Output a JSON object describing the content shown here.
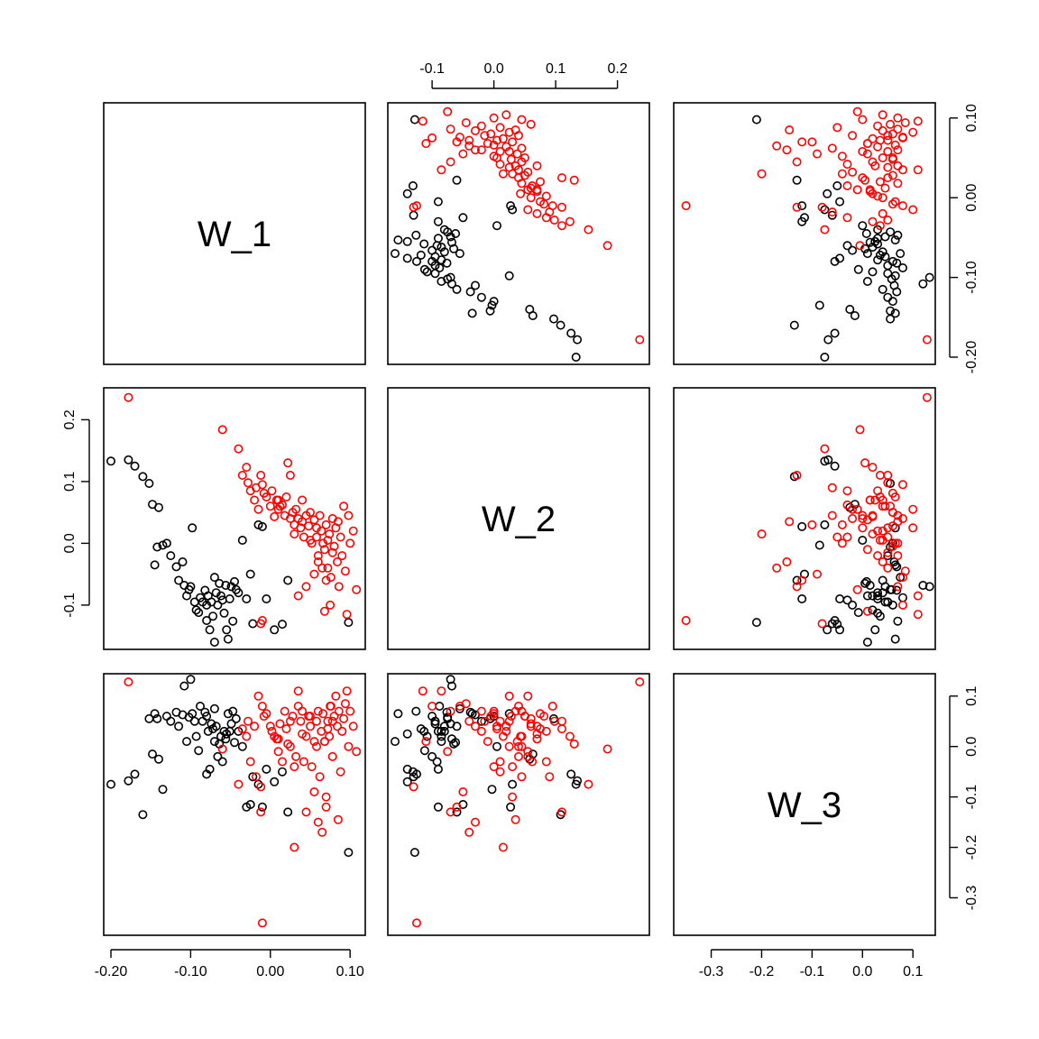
{
  "chart_data": {
    "type": "scatter",
    "layout": "pairs-matrix",
    "variables": [
      "W_1",
      "W_2",
      "W_3"
    ],
    "colors": {
      "group_black": "#000000",
      "group_red": "#ff0000"
    },
    "axis_limits": {
      "W_1": [
        -0.2,
        0.11
      ],
      "W_2": [
        -0.16,
        0.24
      ],
      "W_3": [
        -0.36,
        0.13
      ]
    },
    "ticks": {
      "W_1": {
        "values": [
          -0.2,
          -0.1,
          0.0,
          0.1
        ],
        "labels": [
          "-0.20",
          "-0.10",
          "0.00",
          "0.10"
        ]
      },
      "W_2_top": {
        "values": [
          -0.1,
          0.0,
          0.1,
          0.2
        ],
        "labels": [
          "-0.1",
          "0.0",
          "0.1",
          "0.2"
        ]
      },
      "W_2_left": {
        "values": [
          -0.1,
          0.0,
          0.1,
          0.2
        ],
        "labels": [
          "-0.1",
          "0.0",
          "0.1",
          "0.2"
        ]
      },
      "W_3_bottom": {
        "values": [
          -0.3,
          -0.2,
          -0.1,
          0.0,
          0.1
        ],
        "labels": [
          "-0.3",
          "-0.2",
          "-0.1",
          "0.0",
          "0.1"
        ]
      },
      "W_1_right": {
        "values": [
          -0.2,
          -0.1,
          0.0,
          0.1
        ],
        "labels": [
          "-0.20",
          "-0.10",
          "0.00",
          "0.10"
        ]
      },
      "W_3_right": {
        "values": [
          -0.3,
          -0.2,
          -0.1,
          0.0,
          0.1
        ],
        "labels": [
          "-0.3",
          "-0.2",
          "-0.1",
          "0.0",
          "0.1"
        ]
      }
    },
    "series": [
      {
        "group": "black",
        "points": [
          [
            -0.2,
            0.133,
            -0.075
          ],
          [
            -0.178,
            0.135,
            -0.068
          ],
          [
            -0.17,
            0.125,
            -0.055
          ],
          [
            -0.16,
            0.108,
            -0.135
          ],
          [
            -0.152,
            0.097,
            0.055
          ],
          [
            -0.148,
            0.063,
            -0.015
          ],
          [
            -0.14,
            0.058,
            -0.025
          ],
          [
            -0.142,
            -0.006,
            0.055
          ],
          [
            -0.145,
            -0.035,
            0.065
          ],
          [
            -0.135,
            -0.003,
            -0.085
          ],
          [
            -0.13,
            0.0,
            0.06
          ],
          [
            -0.125,
            -0.02,
            0.05
          ],
          [
            -0.118,
            -0.038,
            0.068
          ],
          [
            -0.115,
            -0.06,
            0.04
          ],
          [
            -0.11,
            -0.03,
            0.063
          ],
          [
            -0.108,
            -0.068,
            0.12
          ],
          [
            -0.105,
            -0.085,
            0.01
          ],
          [
            -0.102,
            -0.075,
            0.058
          ],
          [
            -0.1,
            -0.07,
            0.133
          ],
          [
            -0.098,
            0.025,
            0.065
          ],
          [
            -0.095,
            -0.095,
            0.05
          ],
          [
            -0.093,
            -0.108,
            0.02
          ],
          [
            -0.09,
            -0.112,
            -0.008
          ],
          [
            -0.088,
            -0.088,
            0.08
          ],
          [
            -0.085,
            -0.095,
            0.05
          ],
          [
            -0.082,
            -0.076,
            0.068
          ],
          [
            -0.08,
            -0.1,
            0.06
          ],
          [
            -0.078,
            -0.085,
            0.03
          ],
          [
            -0.076,
            -0.14,
            -0.045
          ],
          [
            -0.074,
            -0.095,
            0.045
          ],
          [
            -0.072,
            -0.118,
            0.035
          ],
          [
            -0.07,
            -0.055,
            0.075
          ],
          [
            -0.068,
            -0.08,
            0.04
          ],
          [
            -0.066,
            -0.1,
            -0.02
          ],
          [
            -0.064,
            -0.065,
            0.005
          ],
          [
            -0.062,
            -0.085,
            0.02
          ],
          [
            -0.06,
            -0.092,
            -0.03
          ],
          [
            -0.058,
            -0.113,
            0.03
          ],
          [
            -0.056,
            -0.068,
            0.015
          ],
          [
            -0.055,
            -0.14,
            0.025
          ],
          [
            -0.053,
            -0.155,
            0.065
          ],
          [
            -0.051,
            -0.09,
            0.03
          ],
          [
            -0.049,
            -0.07,
            0.045
          ],
          [
            -0.047,
            -0.126,
            0.07
          ],
          [
            -0.045,
            -0.062,
            0.008
          ],
          [
            -0.043,
            -0.075,
            0.055
          ],
          [
            -0.04,
            -0.08,
            0.03
          ],
          [
            -0.035,
            0.005,
            0.0
          ],
          [
            -0.03,
            -0.09,
            -0.12
          ],
          [
            -0.025,
            -0.05,
            -0.115
          ],
          [
            -0.022,
            -0.13,
            -0.06
          ],
          [
            -0.015,
            0.03,
            -0.075
          ],
          [
            -0.01,
            0.027,
            -0.12
          ],
          [
            -0.005,
            -0.09,
            -0.045
          ],
          [
            0.005,
            -0.14,
            -0.07
          ],
          [
            0.015,
            -0.131,
            -0.05
          ],
          [
            0.022,
            -0.06,
            -0.13
          ],
          [
            0.098,
            -0.128,
            -0.21
          ],
          [
            -0.08,
            -0.125,
            -0.055
          ],
          [
            -0.07,
            -0.16,
            0.01
          ]
        ]
      },
      {
        "group": "red",
        "points": [
          [
            -0.178,
            0.236,
            0.128
          ],
          [
            -0.06,
            0.184,
            -0.005
          ],
          [
            -0.04,
            0.153,
            -0.075
          ],
          [
            -0.035,
            0.11,
            0.035
          ],
          [
            -0.03,
            0.123,
            0.02
          ],
          [
            -0.028,
            0.098,
            0.05
          ],
          [
            -0.025,
            0.085,
            -0.03
          ],
          [
            -0.02,
            0.07,
            0.04
          ],
          [
            -0.018,
            0.09,
            -0.06
          ],
          [
            -0.015,
            0.055,
            0.1
          ],
          [
            -0.012,
            0.11,
            -0.13
          ],
          [
            -0.01,
            0.095,
            0.08
          ],
          [
            -0.008,
            0.081,
            0.06
          ],
          [
            -0.005,
            0.075,
            0.065
          ],
          [
            0.0,
            0.06,
            0.04
          ],
          [
            0.002,
            0.085,
            0.03
          ],
          [
            0.005,
            0.043,
            0.02
          ],
          [
            0.008,
            0.07,
            0.015
          ],
          [
            0.01,
            0.055,
            -0.01
          ],
          [
            0.012,
            0.06,
            0.045
          ],
          [
            0.015,
            0.062,
            -0.03
          ],
          [
            0.018,
            0.045,
            0.07
          ],
          [
            0.02,
            0.075,
            0.035
          ],
          [
            0.022,
            0.13,
            0.005
          ],
          [
            0.025,
            0.04,
            0.0
          ],
          [
            0.028,
            0.05,
            0.06
          ],
          [
            0.03,
            0.03,
            -0.04
          ],
          [
            0.032,
            0.055,
            -0.02
          ],
          [
            0.035,
            0.04,
            0.08
          ],
          [
            0.038,
            0.025,
            0.05
          ],
          [
            0.04,
            0.035,
            0.07
          ],
          [
            0.042,
            0.01,
            -0.03
          ],
          [
            0.045,
            0.045,
            0.02
          ],
          [
            0.048,
            0.028,
            0.06
          ],
          [
            0.05,
            0.005,
            0.04
          ],
          [
            0.052,
            0.0,
            -0.04
          ],
          [
            0.055,
            0.038,
            0.01
          ],
          [
            0.058,
            0.01,
            0.05
          ],
          [
            0.06,
            -0.02,
            0.07
          ],
          [
            0.062,
            0.045,
            -0.06
          ],
          [
            0.064,
            0.02,
            0.03
          ],
          [
            0.066,
            0.0,
            0.065
          ],
          [
            0.068,
            -0.01,
            0.01
          ],
          [
            0.07,
            0.03,
            -0.1
          ],
          [
            0.072,
            -0.04,
            0.05
          ],
          [
            0.074,
            0.015,
            0.02
          ],
          [
            0.076,
            -0.055,
            0.08
          ],
          [
            0.078,
            0.04,
            -0.02
          ],
          [
            0.08,
            -0.005,
            0.06
          ],
          [
            0.082,
            0.025,
            0.1
          ],
          [
            0.084,
            -0.03,
            0.04
          ],
          [
            0.086,
            -0.07,
            0.07
          ],
          [
            0.088,
            0.01,
            -0.05
          ],
          [
            0.09,
            -0.02,
            0.03
          ],
          [
            0.092,
            0.06,
            0.055
          ],
          [
            0.094,
            -0.045,
            0.085
          ],
          [
            0.096,
            -0.115,
            0.11
          ],
          [
            0.098,
            0.045,
            0.0
          ],
          [
            0.1,
            0.0,
            0.07
          ],
          [
            0.104,
            0.02,
            0.04
          ],
          [
            0.108,
            -0.075,
            -0.01
          ],
          [
            0.068,
            -0.11,
            0.01
          ],
          [
            0.075,
            -0.1,
            0.08
          ],
          [
            -0.012,
            -0.13,
            -0.08
          ],
          [
            0.035,
            -0.085,
            0.11
          ],
          [
            0.045,
            -0.07,
            -0.13
          ],
          [
            0.055,
            -0.05,
            -0.09
          ],
          [
            0.06,
            -0.03,
            -0.15
          ],
          [
            0.065,
            -0.04,
            -0.17
          ],
          [
            0.07,
            -0.06,
            -0.12
          ],
          [
            0.085,
            0.035,
            -0.145
          ],
          [
            0.03,
            0.015,
            -0.2
          ],
          [
            -0.01,
            -0.125,
            -0.35
          ],
          [
            0.01,
            0.07,
            0.015
          ],
          [
            0.025,
            0.11,
            0.05
          ],
          [
            0.04,
            0.07,
            0.025
          ],
          [
            0.05,
            0.05,
            0.06
          ],
          [
            0.058,
            0.025,
            0.0
          ],
          [
            0.072,
            0.005,
            0.035
          ],
          [
            0.078,
            -0.015,
            0.05
          ]
        ]
      }
    ]
  }
}
